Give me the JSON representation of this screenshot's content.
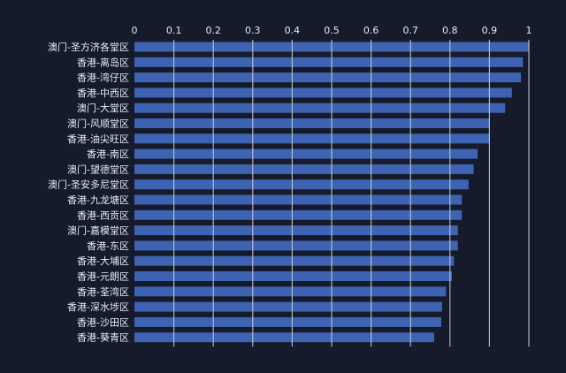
{
  "chart_data": {
    "type": "bar",
    "orientation": "horizontal",
    "title": "",
    "xlabel": "",
    "ylabel": "",
    "xlim": [
      0,
      1
    ],
    "xticks": [
      "0",
      "0.1",
      "0.2",
      "0.3",
      "0.4",
      "0.5",
      "0.6",
      "0.7",
      "0.8",
      "0.9",
      "1"
    ],
    "axis_position": "top",
    "grid": true,
    "categories": [
      "澳门-圣方济各堂区",
      "香港-离岛区",
      "香港-湾仔区",
      "香港-中西区",
      "澳门-大堂区",
      "澳门-风顺堂区",
      "香港-油尖旺区",
      "香港-南区",
      "澳门-望德堂区",
      "澳门-圣安多尼堂区",
      "香港-九龙塘区",
      "香港-西贡区",
      "澳门-嘉模堂区",
      "香港-东区",
      "香港-大埔区",
      "香港-元朗区",
      "香港-荃湾区",
      "香港-深水埗区",
      "香港-沙田区",
      "香港-葵青区"
    ],
    "values": [
      1.0,
      0.985,
      0.98,
      0.957,
      0.94,
      0.9,
      0.9,
      0.87,
      0.86,
      0.847,
      0.83,
      0.83,
      0.82,
      0.82,
      0.81,
      0.805,
      0.79,
      0.78,
      0.778,
      0.76
    ],
    "colors": {
      "bar": "#3e63b3",
      "background": "#151b2b",
      "grid": "#c8ccd4"
    }
  }
}
